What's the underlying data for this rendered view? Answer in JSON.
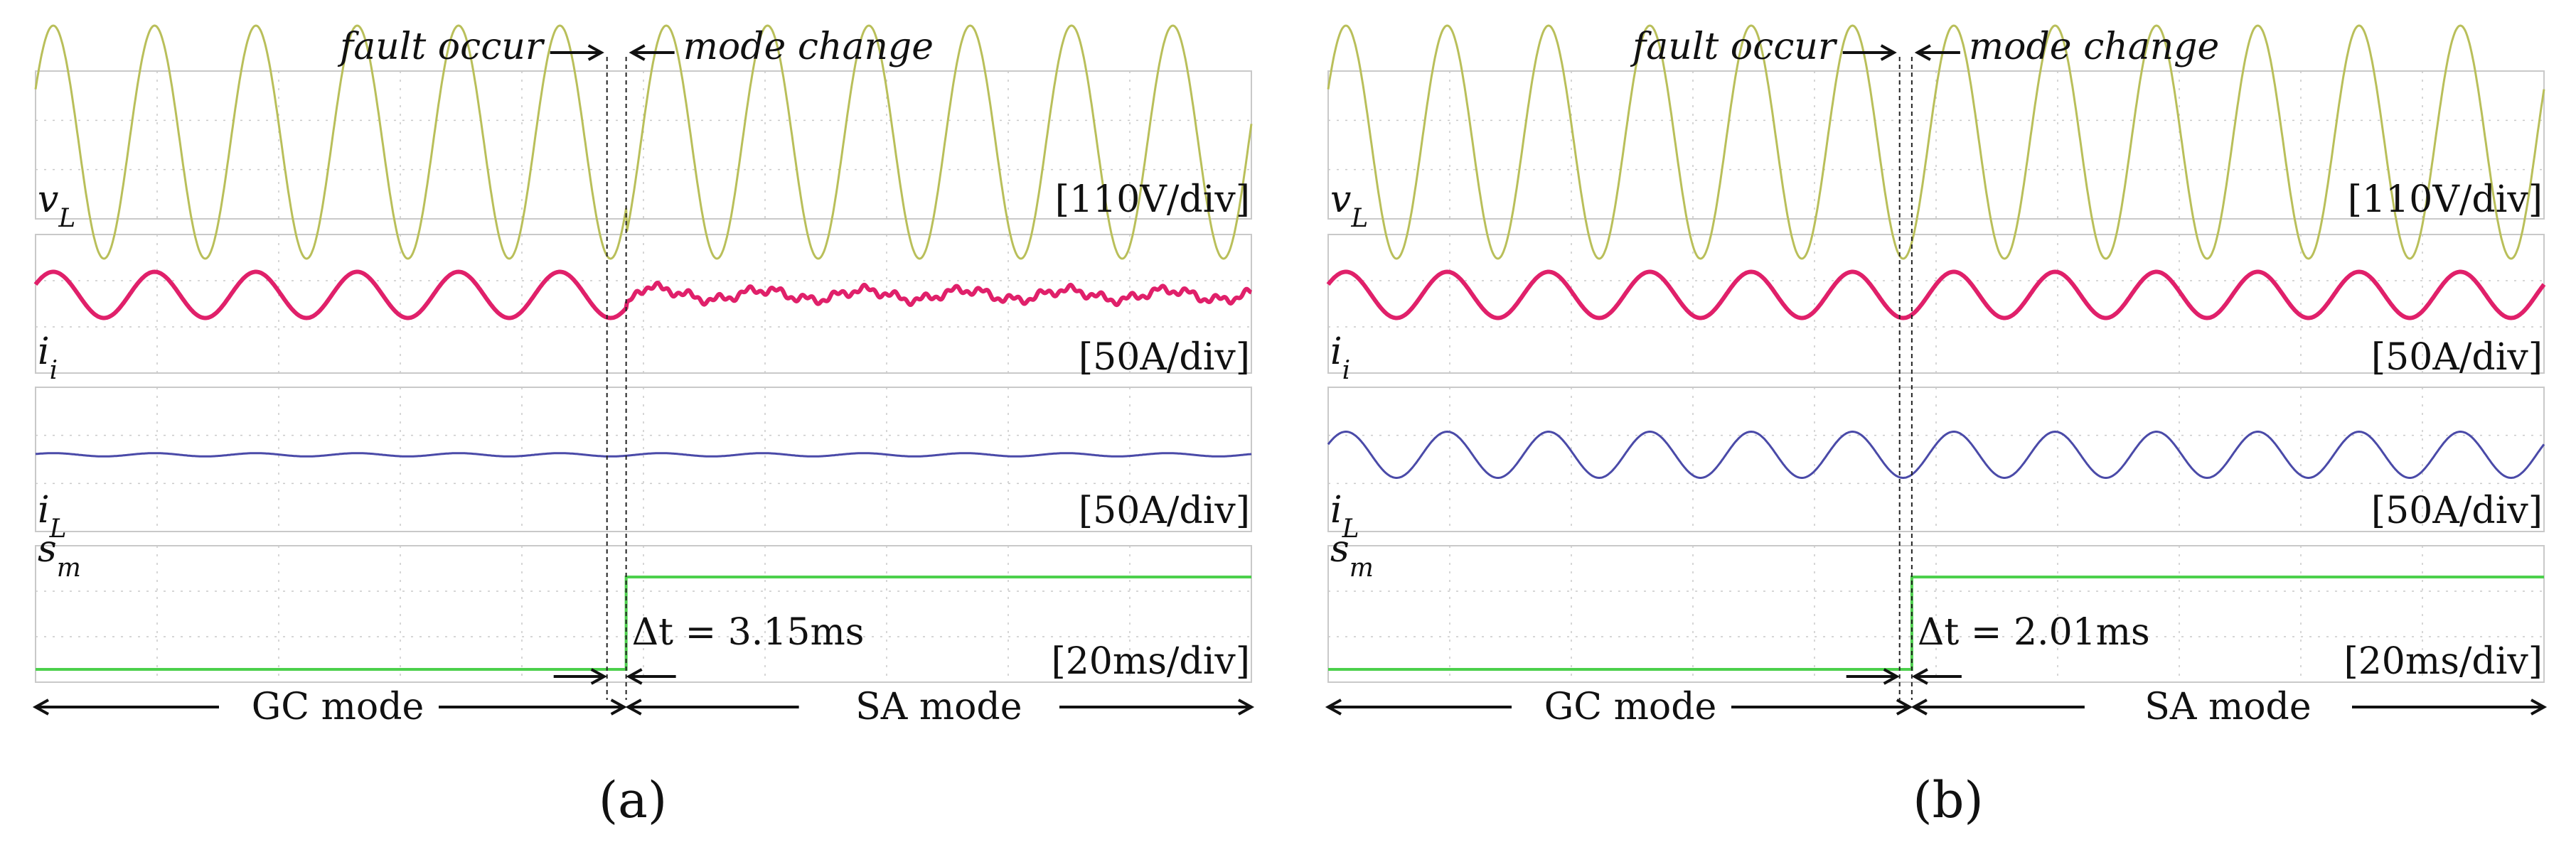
{
  "figure": {
    "caption_a": "(a)",
    "caption_b": "(b)"
  },
  "colors": {
    "voltage": "#b9bf5a",
    "inverter_current": "#e0206a",
    "load_current": "#4a4aa8",
    "switch_signal": "#4cd04c",
    "grid": "#c9c9c9",
    "text": "#111111"
  },
  "chart_data": [
    {
      "type": "line",
      "title": "(a)",
      "x_unit": "ms",
      "xlim": [
        0,
        200
      ],
      "time_per_div": "[20ms/div]",
      "annotations": {
        "fault_label": "fault occur",
        "mode_label": "mode change",
        "delta_t": "Δt = 3.15ms",
        "gc_mode": "GC mode",
        "sa_mode": "SA mode"
      },
      "fault_time_ms": 94.0,
      "mode_change_time_ms": 97.15,
      "frequency_hz": 60,
      "series": [
        {
          "name": "vL",
          "symbol": "v",
          "subscript": "L",
          "scale": "[110V/div]",
          "units_per_div": 110,
          "amplitude_V": 311,
          "amplitude_after_V": 311,
          "phase_deg": 0,
          "phase_shift_after_deg": -18
        },
        {
          "name": "ii",
          "symbol": "i",
          "subscript": "i",
          "scale": "[50A/div]",
          "units_per_div": 50,
          "amplitude_A": 28,
          "amplitude_after_A": 6,
          "phase_deg": 0
        },
        {
          "name": "iL",
          "symbol": "i",
          "subscript": "L",
          "scale": "[50A/div]",
          "units_per_div": 50,
          "amplitude_A": 2,
          "amplitude_after_A": 2,
          "phase_deg": 0
        },
        {
          "name": "sm",
          "symbol": "s",
          "subscript": "m",
          "scale": "[20ms/div]",
          "level_before": 0,
          "level_after": 1,
          "step_time_ms": 97.15
        }
      ]
    },
    {
      "type": "line",
      "title": "(b)",
      "x_unit": "ms",
      "xlim": [
        0,
        200
      ],
      "time_per_div": "[20ms/div]",
      "annotations": {
        "fault_label": "fault occur",
        "mode_label": "mode change",
        "delta_t": "Δt = 2.01ms",
        "gc_mode": "GC mode",
        "sa_mode": "SA mode"
      },
      "fault_time_ms": 94.0,
      "mode_change_time_ms": 96.01,
      "frequency_hz": 60,
      "series": [
        {
          "name": "vL",
          "symbol": "v",
          "subscript": "L",
          "scale": "[110V/div]",
          "units_per_div": 110,
          "amplitude_V": 311,
          "amplitude_after_V": 311,
          "phase_deg": 0,
          "phase_shift_after_deg": 0
        },
        {
          "name": "ii",
          "symbol": "i",
          "subscript": "i",
          "scale": "[50A/div]",
          "units_per_div": 50,
          "amplitude_A": 28,
          "amplitude_after_A": 28,
          "phase_deg": 0
        },
        {
          "name": "iL",
          "symbol": "i",
          "subscript": "L",
          "scale": "[50A/div]",
          "units_per_div": 50,
          "amplitude_A": 28,
          "amplitude_after_A": 28,
          "phase_deg": 0
        },
        {
          "name": "sm",
          "symbol": "s",
          "subscript": "m",
          "scale": "[20ms/div]",
          "level_before": 0,
          "level_after": 1,
          "step_time_ms": 96.01
        }
      ]
    }
  ]
}
